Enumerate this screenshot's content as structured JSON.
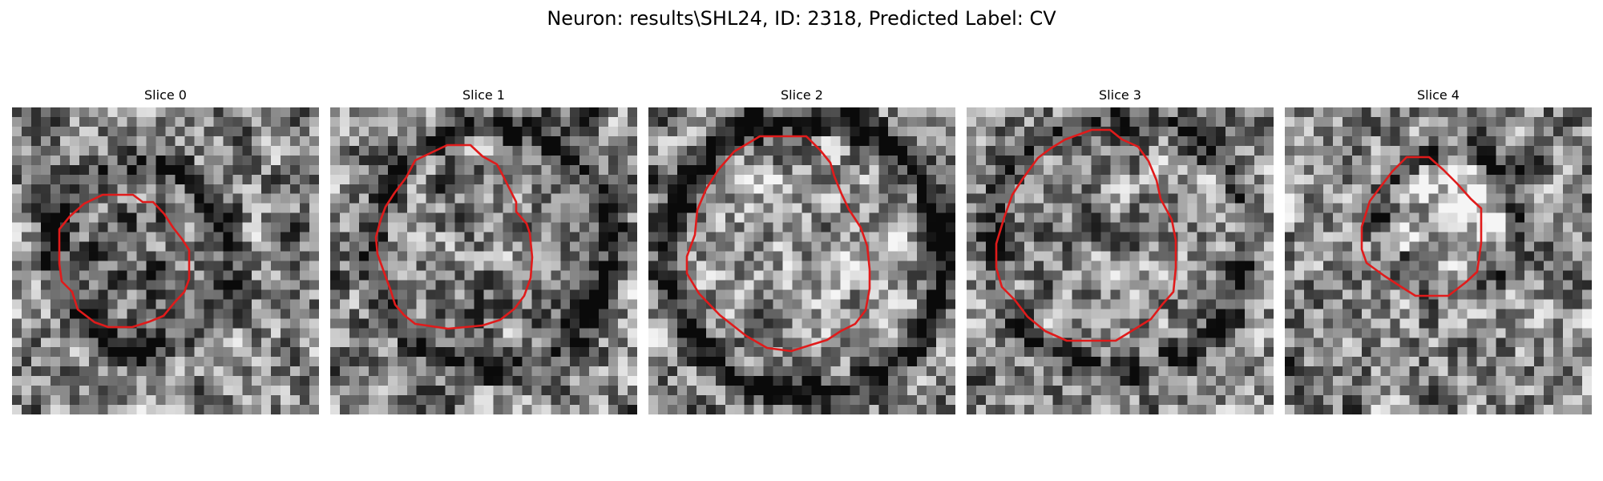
{
  "figure": {
    "title": "Neuron: results\\SHL24, ID: 2318, Predicted Label: CV"
  },
  "colors": {
    "background": "#ffffff",
    "contour": "#e01b1b",
    "colormap": "grayscale"
  },
  "panels": [
    {
      "title": "Slice 0"
    },
    {
      "title": "Slice 1"
    },
    {
      "title": "Slice 2"
    },
    {
      "title": "Slice 3"
    },
    {
      "title": "Slice 4"
    }
  ]
}
